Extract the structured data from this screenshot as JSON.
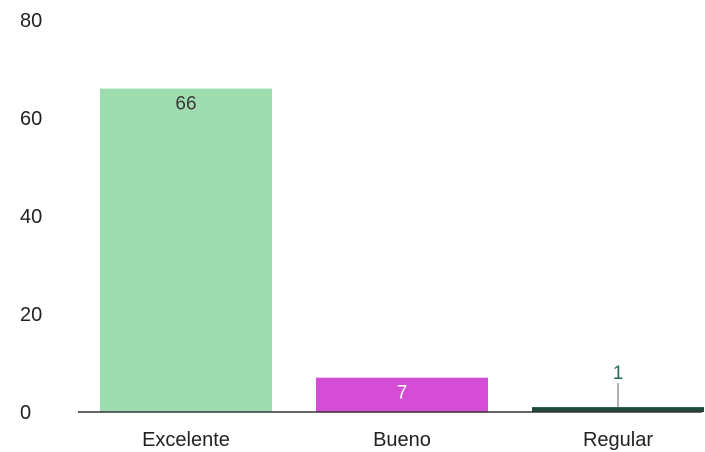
{
  "chart_data": {
    "type": "bar",
    "categories": [
      "Excelente",
      "Bueno",
      "Regular"
    ],
    "values": [
      66,
      7,
      1
    ],
    "data_labels": [
      "66",
      "7",
      "1"
    ],
    "colors": [
      "#9edcb0",
      "#d44dd4",
      "#1f4a3a"
    ],
    "label_colors": [
      "#3a3a3a",
      "#ffffff",
      "#2b6b55"
    ],
    "y_ticks": [
      "0",
      "20",
      "40",
      "60",
      "80"
    ],
    "ylim": [
      0,
      80
    ],
    "title": "",
    "xlabel": "",
    "ylabel": "",
    "grid": false,
    "legend": "none"
  }
}
